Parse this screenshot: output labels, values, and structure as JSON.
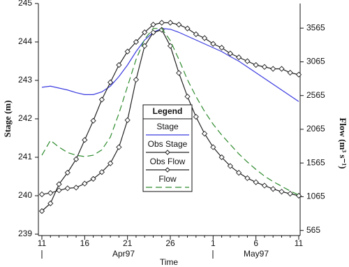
{
  "chart_data": {
    "type": "line",
    "xlabel": "Time",
    "ylabel": "Stage (m)",
    "y2label": "Flow (m³ s⁻¹)",
    "categories": [
      "11",
      null,
      null,
      null,
      null,
      "16",
      null,
      null,
      null,
      null,
      "21",
      null,
      null,
      null,
      null,
      "26",
      null,
      null,
      null,
      null,
      "1",
      null,
      null,
      null,
      null,
      "6",
      null,
      null,
      null,
      null,
      "11"
    ],
    "month_labels": [
      "Apr97",
      "May97"
    ],
    "ylim": [
      239,
      245
    ],
    "yticks": [
      239,
      240,
      241,
      242,
      243,
      244,
      245
    ],
    "y2lim": [
      510,
      3930
    ],
    "y2ticks": [
      565,
      1065,
      1565,
      2065,
      2565,
      3065,
      3565
    ],
    "legend_title": "Legend",
    "legend_position": "center",
    "series": [
      {
        "name": "Stage",
        "color": "#3a3ae0",
        "dash": false,
        "marker": "none",
        "values": [
          242.82,
          242.85,
          242.8,
          242.75,
          242.68,
          242.63,
          242.63,
          242.7,
          242.85,
          243.1,
          243.4,
          243.75,
          244.05,
          244.25,
          244.35,
          244.33,
          244.25,
          244.15,
          244.05,
          243.95,
          243.85,
          243.75,
          243.62,
          243.5,
          243.35,
          243.2,
          243.05,
          242.9,
          242.75,
          242.6,
          242.45
        ]
      },
      {
        "name": "Obs Stage",
        "color": "#222222",
        "dash": false,
        "marker": "diamond",
        "values": [
          239.6,
          239.8,
          240.3,
          240.6,
          240.95,
          241.45,
          241.95,
          242.5,
          242.95,
          243.4,
          243.75,
          244.0,
          244.25,
          244.45,
          244.5,
          244.5,
          244.45,
          244.35,
          244.2,
          244.1,
          243.95,
          243.85,
          243.7,
          243.6,
          243.5,
          243.4,
          243.35,
          243.3,
          243.3,
          243.2,
          243.15
        ]
      },
      {
        "name": "Obs Flow",
        "color": "#222222",
        "dash": false,
        "marker": "diamond",
        "axis": "y2",
        "values": [
          1100,
          1120,
          1160,
          1190,
          1200,
          1260,
          1330,
          1430,
          1560,
          1800,
          2200,
          2800,
          3300,
          3500,
          3540,
          3300,
          2900,
          2550,
          2250,
          2000,
          1800,
          1650,
          1520,
          1420,
          1340,
          1280,
          1230,
          1180,
          1140,
          1110,
          1080
        ]
      },
      {
        "name": "Flow",
        "color": "#2e8b2e",
        "dash": true,
        "marker": "none",
        "axis": "y2",
        "values": [
          1680,
          1900,
          1800,
          1720,
          1680,
          1660,
          1680,
          1760,
          1950,
          2300,
          2700,
          3100,
          3400,
          3560,
          3560,
          3380,
          3100,
          2800,
          2550,
          2330,
          2140,
          1980,
          1840,
          1700,
          1580,
          1470,
          1370,
          1290,
          1220,
          1150,
          1090
        ]
      }
    ]
  }
}
